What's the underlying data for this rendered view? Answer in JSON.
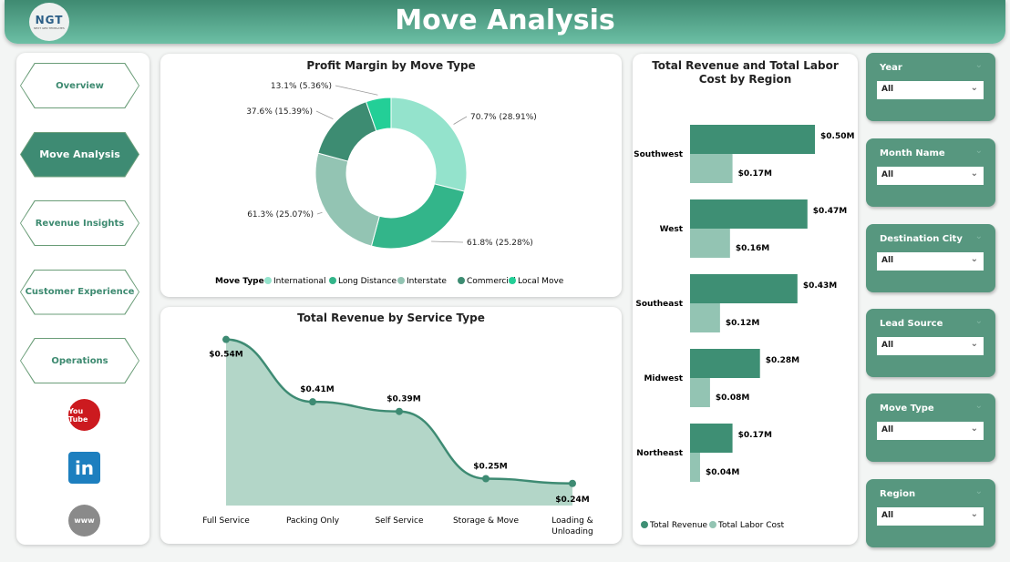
{
  "header": {
    "title": "Move Analysis",
    "logo_text": "NGT"
  },
  "nav": {
    "items": [
      {
        "label": "Overview",
        "active": false
      },
      {
        "label": "Move Analysis",
        "active": true
      },
      {
        "label": "Revenue Insights",
        "active": false
      },
      {
        "label": "Customer Experience",
        "active": false
      },
      {
        "label": "Operations",
        "active": false
      }
    ],
    "social": [
      {
        "icon": "youtube-icon",
        "label": "You Tube"
      },
      {
        "icon": "linkedin-icon",
        "label": "in"
      },
      {
        "icon": "globe-www-icon",
        "label": "www"
      }
    ]
  },
  "filters": [
    {
      "label": "Year",
      "value": "All"
    },
    {
      "label": "Month Name",
      "value": "All"
    },
    {
      "label": "Destination City",
      "value": "All"
    },
    {
      "label": "Lead Source",
      "value": "All"
    },
    {
      "label": "Move Type",
      "value": "All"
    },
    {
      "label": "Region",
      "value": "All"
    }
  ],
  "chart_data": [
    {
      "type": "pie",
      "title": "Profit Margin by Move Type",
      "legend_title": "Move Type",
      "legend_position": "bottom",
      "slices": [
        {
          "name": "International",
          "label": "70.7% (28.91%)",
          "share": 28.91,
          "color": "#94e3cc"
        },
        {
          "name": "Long Distance",
          "label": "61.8% (25.28%)",
          "share": 25.28,
          "color": "#33b58a"
        },
        {
          "name": "Interstate",
          "label": "61.3% (25.07%)",
          "share": 25.07,
          "color": "#93c4b3"
        },
        {
          "name": "Commercial",
          "label": "37.6% (15.39%)",
          "share": 15.39,
          "color": "#3d8c72"
        },
        {
          "name": "Local Move",
          "label": "13.1% (5.36%)",
          "share": 5.36,
          "color": "#23cf97"
        }
      ]
    },
    {
      "type": "area",
      "title": "Total Revenue by Service Type",
      "categories": [
        "Full Service",
        "Packing Only",
        "Self Service",
        "Storage & Move",
        "Loading & Unloading"
      ],
      "values": [
        0.54,
        0.41,
        0.39,
        0.25,
        0.24
      ],
      "labels": [
        "$0.54M",
        "$0.41M",
        "$0.39M",
        "$0.25M",
        "$0.24M"
      ],
      "color": "#3e8b73",
      "fill": "#b3d6c8"
    },
    {
      "type": "bar",
      "orientation": "horizontal",
      "title": "Total Revenue and Total Labor Cost by Region",
      "categories": [
        "Southwest",
        "West",
        "Southeast",
        "Midwest",
        "Northeast"
      ],
      "legend_position": "bottom",
      "series": [
        {
          "name": "Total Revenue",
          "values": [
            0.5,
            0.47,
            0.43,
            0.28,
            0.17
          ],
          "labels": [
            "$0.50M",
            "$0.47M",
            "$0.43M",
            "$0.28M",
            "$0.17M"
          ],
          "color": "#3e8f74"
        },
        {
          "name": "Total Labor Cost",
          "values": [
            0.17,
            0.16,
            0.12,
            0.08,
            0.04
          ],
          "labels": [
            "$0.17M",
            "$0.16M",
            "$0.12M",
            "$0.08M",
            "$0.04M"
          ],
          "color": "#93c4b3"
        }
      ]
    }
  ]
}
